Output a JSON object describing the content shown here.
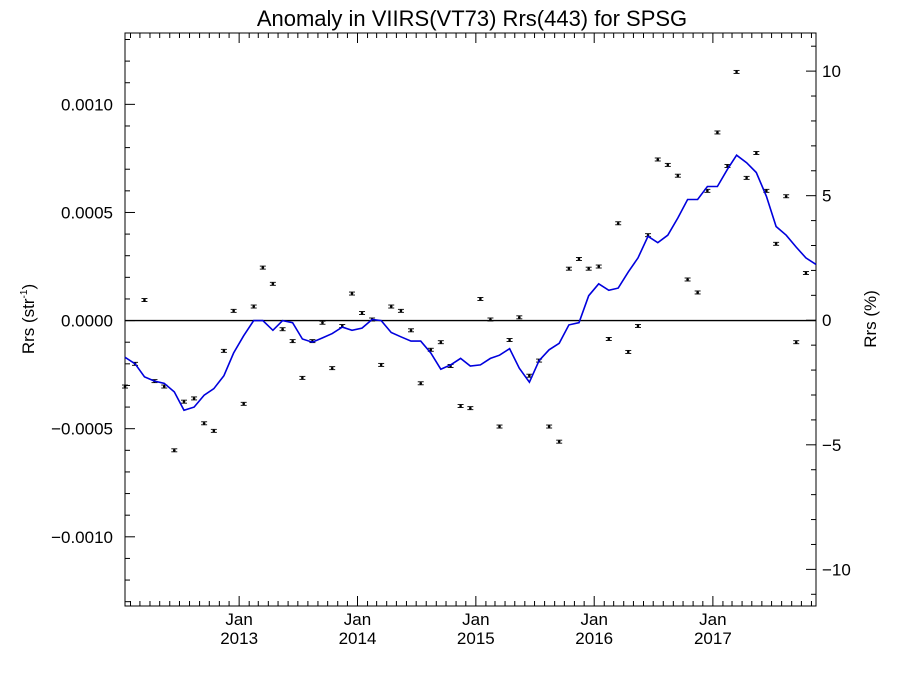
{
  "chart_data": {
    "type": "scatter",
    "title": "Anomaly in VIIRS(VT73) Rrs(443) for SPSG",
    "ylabel": "Rrs (str",
    "ylabel_superscript": "-1",
    "ylabel_close": ")",
    "y2label": "Rrs (%)",
    "x_range": [
      "2012-01-15",
      "2017-11-15"
    ],
    "ylim": [
      -0.00132,
      0.00133
    ],
    "y2lim": [
      -11.47,
      11.53
    ],
    "grid": false,
    "x_ticks": [
      {
        "date": "2013-01-01",
        "month": "Jan",
        "year": "2013"
      },
      {
        "date": "2014-01-01",
        "month": "Jan",
        "year": "2014"
      },
      {
        "date": "2015-01-01",
        "month": "Jan",
        "year": "2015"
      },
      {
        "date": "2016-01-01",
        "month": "Jan",
        "year": "2016"
      },
      {
        "date": "2017-01-01",
        "month": "Jan",
        "year": "2017"
      }
    ],
    "y_ticks": [
      {
        "value": 0.001,
        "label": "0.0010"
      },
      {
        "value": 0.0005,
        "label": "0.0005"
      },
      {
        "value": 0.0,
        "label": "0.0000"
      },
      {
        "value": -0.0005,
        "label": "−0.0005"
      },
      {
        "value": -0.001,
        "label": "−0.0010"
      }
    ],
    "y2_ticks": [
      {
        "value": 10,
        "label": "10"
      },
      {
        "value": 5,
        "label": "5"
      },
      {
        "value": 0,
        "label": "0"
      },
      {
        "value": -5,
        "label": "−5"
      },
      {
        "value": -10,
        "label": "−10"
      }
    ],
    "zero_line": 0,
    "series": [
      {
        "kind": "points",
        "color": "#000000",
        "points": [
          {
            "x": "2012-01-15",
            "y": -0.000305
          },
          {
            "x": "2012-02-15",
            "y": -0.0002
          },
          {
            "x": "2012-03-15",
            "y": 9.5e-05
          },
          {
            "x": "2012-04-15",
            "y": -0.00028
          },
          {
            "x": "2012-05-15",
            "y": -0.000305
          },
          {
            "x": "2012-06-15",
            "y": -0.0006
          },
          {
            "x": "2012-07-15",
            "y": -0.000375
          },
          {
            "x": "2012-08-15",
            "y": -0.00036
          },
          {
            "x": "2012-09-15",
            "y": -0.000475
          },
          {
            "x": "2012-10-15",
            "y": -0.00051
          },
          {
            "x": "2012-11-15",
            "y": -0.00014
          },
          {
            "x": "2012-12-15",
            "y": 4.5e-05
          },
          {
            "x": "2013-01-15",
            "y": -0.000385
          },
          {
            "x": "2013-02-15",
            "y": 6.5e-05
          },
          {
            "x": "2013-03-15",
            "y": 0.000245
          },
          {
            "x": "2013-04-15",
            "y": 0.00017
          },
          {
            "x": "2013-05-15",
            "y": -4e-05
          },
          {
            "x": "2013-06-15",
            "y": -9.5e-05
          },
          {
            "x": "2013-07-15",
            "y": -0.000265
          },
          {
            "x": "2013-08-15",
            "y": -9.5e-05
          },
          {
            "x": "2013-09-15",
            "y": -1e-05
          },
          {
            "x": "2013-10-15",
            "y": -0.00022
          },
          {
            "x": "2013-11-15",
            "y": -2.5e-05
          },
          {
            "x": "2013-12-15",
            "y": 0.000125
          },
          {
            "x": "2014-01-15",
            "y": 3.5e-05
          },
          {
            "x": "2014-02-15",
            "y": 5e-06
          },
          {
            "x": "2014-03-15",
            "y": -0.000205
          },
          {
            "x": "2014-04-15",
            "y": 6.5e-05
          },
          {
            "x": "2014-05-15",
            "y": 4.5e-05
          },
          {
            "x": "2014-06-15",
            "y": -4.5e-05
          },
          {
            "x": "2014-07-15",
            "y": -0.00029
          },
          {
            "x": "2014-08-15",
            "y": -0.000135
          },
          {
            "x": "2014-09-15",
            "y": -0.0001
          },
          {
            "x": "2014-10-15",
            "y": -0.00021
          },
          {
            "x": "2014-11-15",
            "y": -0.000395
          },
          {
            "x": "2014-12-15",
            "y": -0.000405
          },
          {
            "x": "2015-01-15",
            "y": 0.0001
          },
          {
            "x": "2015-02-15",
            "y": 5e-06
          },
          {
            "x": "2015-03-15",
            "y": -0.00049
          },
          {
            "x": "2015-04-15",
            "y": -9e-05
          },
          {
            "x": "2015-05-15",
            "y": 1.5e-05
          },
          {
            "x": "2015-06-15",
            "y": -0.000255
          },
          {
            "x": "2015-07-15",
            "y": -0.000185
          },
          {
            "x": "2015-08-15",
            "y": -0.00049
          },
          {
            "x": "2015-09-15",
            "y": -0.00056
          },
          {
            "x": "2015-10-15",
            "y": 0.00024
          },
          {
            "x": "2015-11-15",
            "y": 0.000285
          },
          {
            "x": "2015-12-15",
            "y": 0.00024
          },
          {
            "x": "2016-01-15",
            "y": 0.00025
          },
          {
            "x": "2016-02-15",
            "y": -8.5e-05
          },
          {
            "x": "2016-03-15",
            "y": 0.00045
          },
          {
            "x": "2016-04-15",
            "y": -0.000145
          },
          {
            "x": "2016-05-15",
            "y": -2.5e-05
          },
          {
            "x": "2016-06-15",
            "y": 0.000395
          },
          {
            "x": "2016-07-15",
            "y": 0.000745
          },
          {
            "x": "2016-08-15",
            "y": 0.00072
          },
          {
            "x": "2016-09-15",
            "y": 0.00067
          },
          {
            "x": "2016-10-15",
            "y": 0.00019
          },
          {
            "x": "2016-11-15",
            "y": 0.00013
          },
          {
            "x": "2016-12-15",
            "y": 0.0006
          },
          {
            "x": "2017-01-15",
            "y": 0.00087
          },
          {
            "x": "2017-02-15",
            "y": 0.000715
          },
          {
            "x": "2017-03-15",
            "y": 0.00115
          },
          {
            "x": "2017-04-15",
            "y": 0.00066
          },
          {
            "x": "2017-05-15",
            "y": 0.000775
          },
          {
            "x": "2017-06-15",
            "y": 0.0006
          },
          {
            "x": "2017-07-15",
            "y": 0.000355
          },
          {
            "x": "2017-08-15",
            "y": 0.000575
          },
          {
            "x": "2017-09-15",
            "y": -0.0001
          },
          {
            "x": "2017-10-15",
            "y": 0.00022
          }
        ]
      },
      {
        "kind": "line",
        "color": "#0000dd",
        "points": [
          {
            "x": "2012-01-15",
            "y": -0.00017
          },
          {
            "x": "2012-02-15",
            "y": -0.0002
          },
          {
            "x": "2012-03-15",
            "y": -0.00026
          },
          {
            "x": "2012-04-15",
            "y": -0.00028
          },
          {
            "x": "2012-05-15",
            "y": -0.00029
          },
          {
            "x": "2012-06-15",
            "y": -0.00033
          },
          {
            "x": "2012-07-15",
            "y": -0.000415
          },
          {
            "x": "2012-08-15",
            "y": -0.0004
          },
          {
            "x": "2012-09-15",
            "y": -0.000345
          },
          {
            "x": "2012-10-15",
            "y": -0.000315
          },
          {
            "x": "2012-11-15",
            "y": -0.000255
          },
          {
            "x": "2012-12-15",
            "y": -0.00015
          },
          {
            "x": "2013-01-15",
            "y": -7e-05
          },
          {
            "x": "2013-02-15",
            "y": 0.0
          },
          {
            "x": "2013-03-15",
            "y": 0.0
          },
          {
            "x": "2013-04-15",
            "y": -4.5e-05
          },
          {
            "x": "2013-05-15",
            "y": 0.0
          },
          {
            "x": "2013-06-15",
            "y": -1e-05
          },
          {
            "x": "2013-07-15",
            "y": -8.5e-05
          },
          {
            "x": "2013-08-15",
            "y": -0.0001
          },
          {
            "x": "2013-09-15",
            "y": -8e-05
          },
          {
            "x": "2013-10-15",
            "y": -6e-05
          },
          {
            "x": "2013-11-15",
            "y": -3e-05
          },
          {
            "x": "2013-12-15",
            "y": -4.5e-05
          },
          {
            "x": "2014-01-15",
            "y": -3.5e-05
          },
          {
            "x": "2014-02-15",
            "y": 5e-06
          },
          {
            "x": "2014-03-15",
            "y": 0.0
          },
          {
            "x": "2014-04-15",
            "y": -5.5e-05
          },
          {
            "x": "2014-05-15",
            "y": -7.5e-05
          },
          {
            "x": "2014-06-15",
            "y": -9.5e-05
          },
          {
            "x": "2014-07-15",
            "y": -9.5e-05
          },
          {
            "x": "2014-08-15",
            "y": -0.00015
          },
          {
            "x": "2014-09-15",
            "y": -0.000225
          },
          {
            "x": "2014-10-15",
            "y": -0.000205
          },
          {
            "x": "2014-11-15",
            "y": -0.000175
          },
          {
            "x": "2014-12-15",
            "y": -0.00021
          },
          {
            "x": "2015-01-15",
            "y": -0.000205
          },
          {
            "x": "2015-02-15",
            "y": -0.000175
          },
          {
            "x": "2015-03-15",
            "y": -0.00016
          },
          {
            "x": "2015-04-15",
            "y": -0.00013
          },
          {
            "x": "2015-05-15",
            "y": -0.00022
          },
          {
            "x": "2015-06-15",
            "y": -0.000285
          },
          {
            "x": "2015-07-15",
            "y": -0.000185
          },
          {
            "x": "2015-08-15",
            "y": -0.000135
          },
          {
            "x": "2015-09-15",
            "y": -0.000105
          },
          {
            "x": "2015-10-15",
            "y": -2e-05
          },
          {
            "x": "2015-11-15",
            "y": -1e-05
          },
          {
            "x": "2015-12-15",
            "y": 0.000115
          },
          {
            "x": "2016-01-15",
            "y": 0.00017
          },
          {
            "x": "2016-02-15",
            "y": 0.00014
          },
          {
            "x": "2016-03-15",
            "y": 0.00015
          },
          {
            "x": "2016-04-15",
            "y": 0.000225
          },
          {
            "x": "2016-05-15",
            "y": 0.00029
          },
          {
            "x": "2016-06-15",
            "y": 0.00039
          },
          {
            "x": "2016-07-15",
            "y": 0.00036
          },
          {
            "x": "2016-08-15",
            "y": 0.000395
          },
          {
            "x": "2016-09-15",
            "y": 0.000475
          },
          {
            "x": "2016-10-15",
            "y": 0.00056
          },
          {
            "x": "2016-11-15",
            "y": 0.00056
          },
          {
            "x": "2016-12-15",
            "y": 0.00062
          },
          {
            "x": "2017-01-15",
            "y": 0.00062
          },
          {
            "x": "2017-02-15",
            "y": 0.0007
          },
          {
            "x": "2017-03-15",
            "y": 0.000765
          },
          {
            "x": "2017-04-15",
            "y": 0.00073
          },
          {
            "x": "2017-05-15",
            "y": 0.000685
          },
          {
            "x": "2017-06-15",
            "y": 0.000575
          },
          {
            "x": "2017-07-15",
            "y": 0.000435
          },
          {
            "x": "2017-08-15",
            "y": 0.000395
          },
          {
            "x": "2017-09-15",
            "y": 0.00034
          },
          {
            "x": "2017-10-15",
            "y": 0.00029
          },
          {
            "x": "2017-11-15",
            "y": 0.00026
          }
        ]
      }
    ]
  }
}
